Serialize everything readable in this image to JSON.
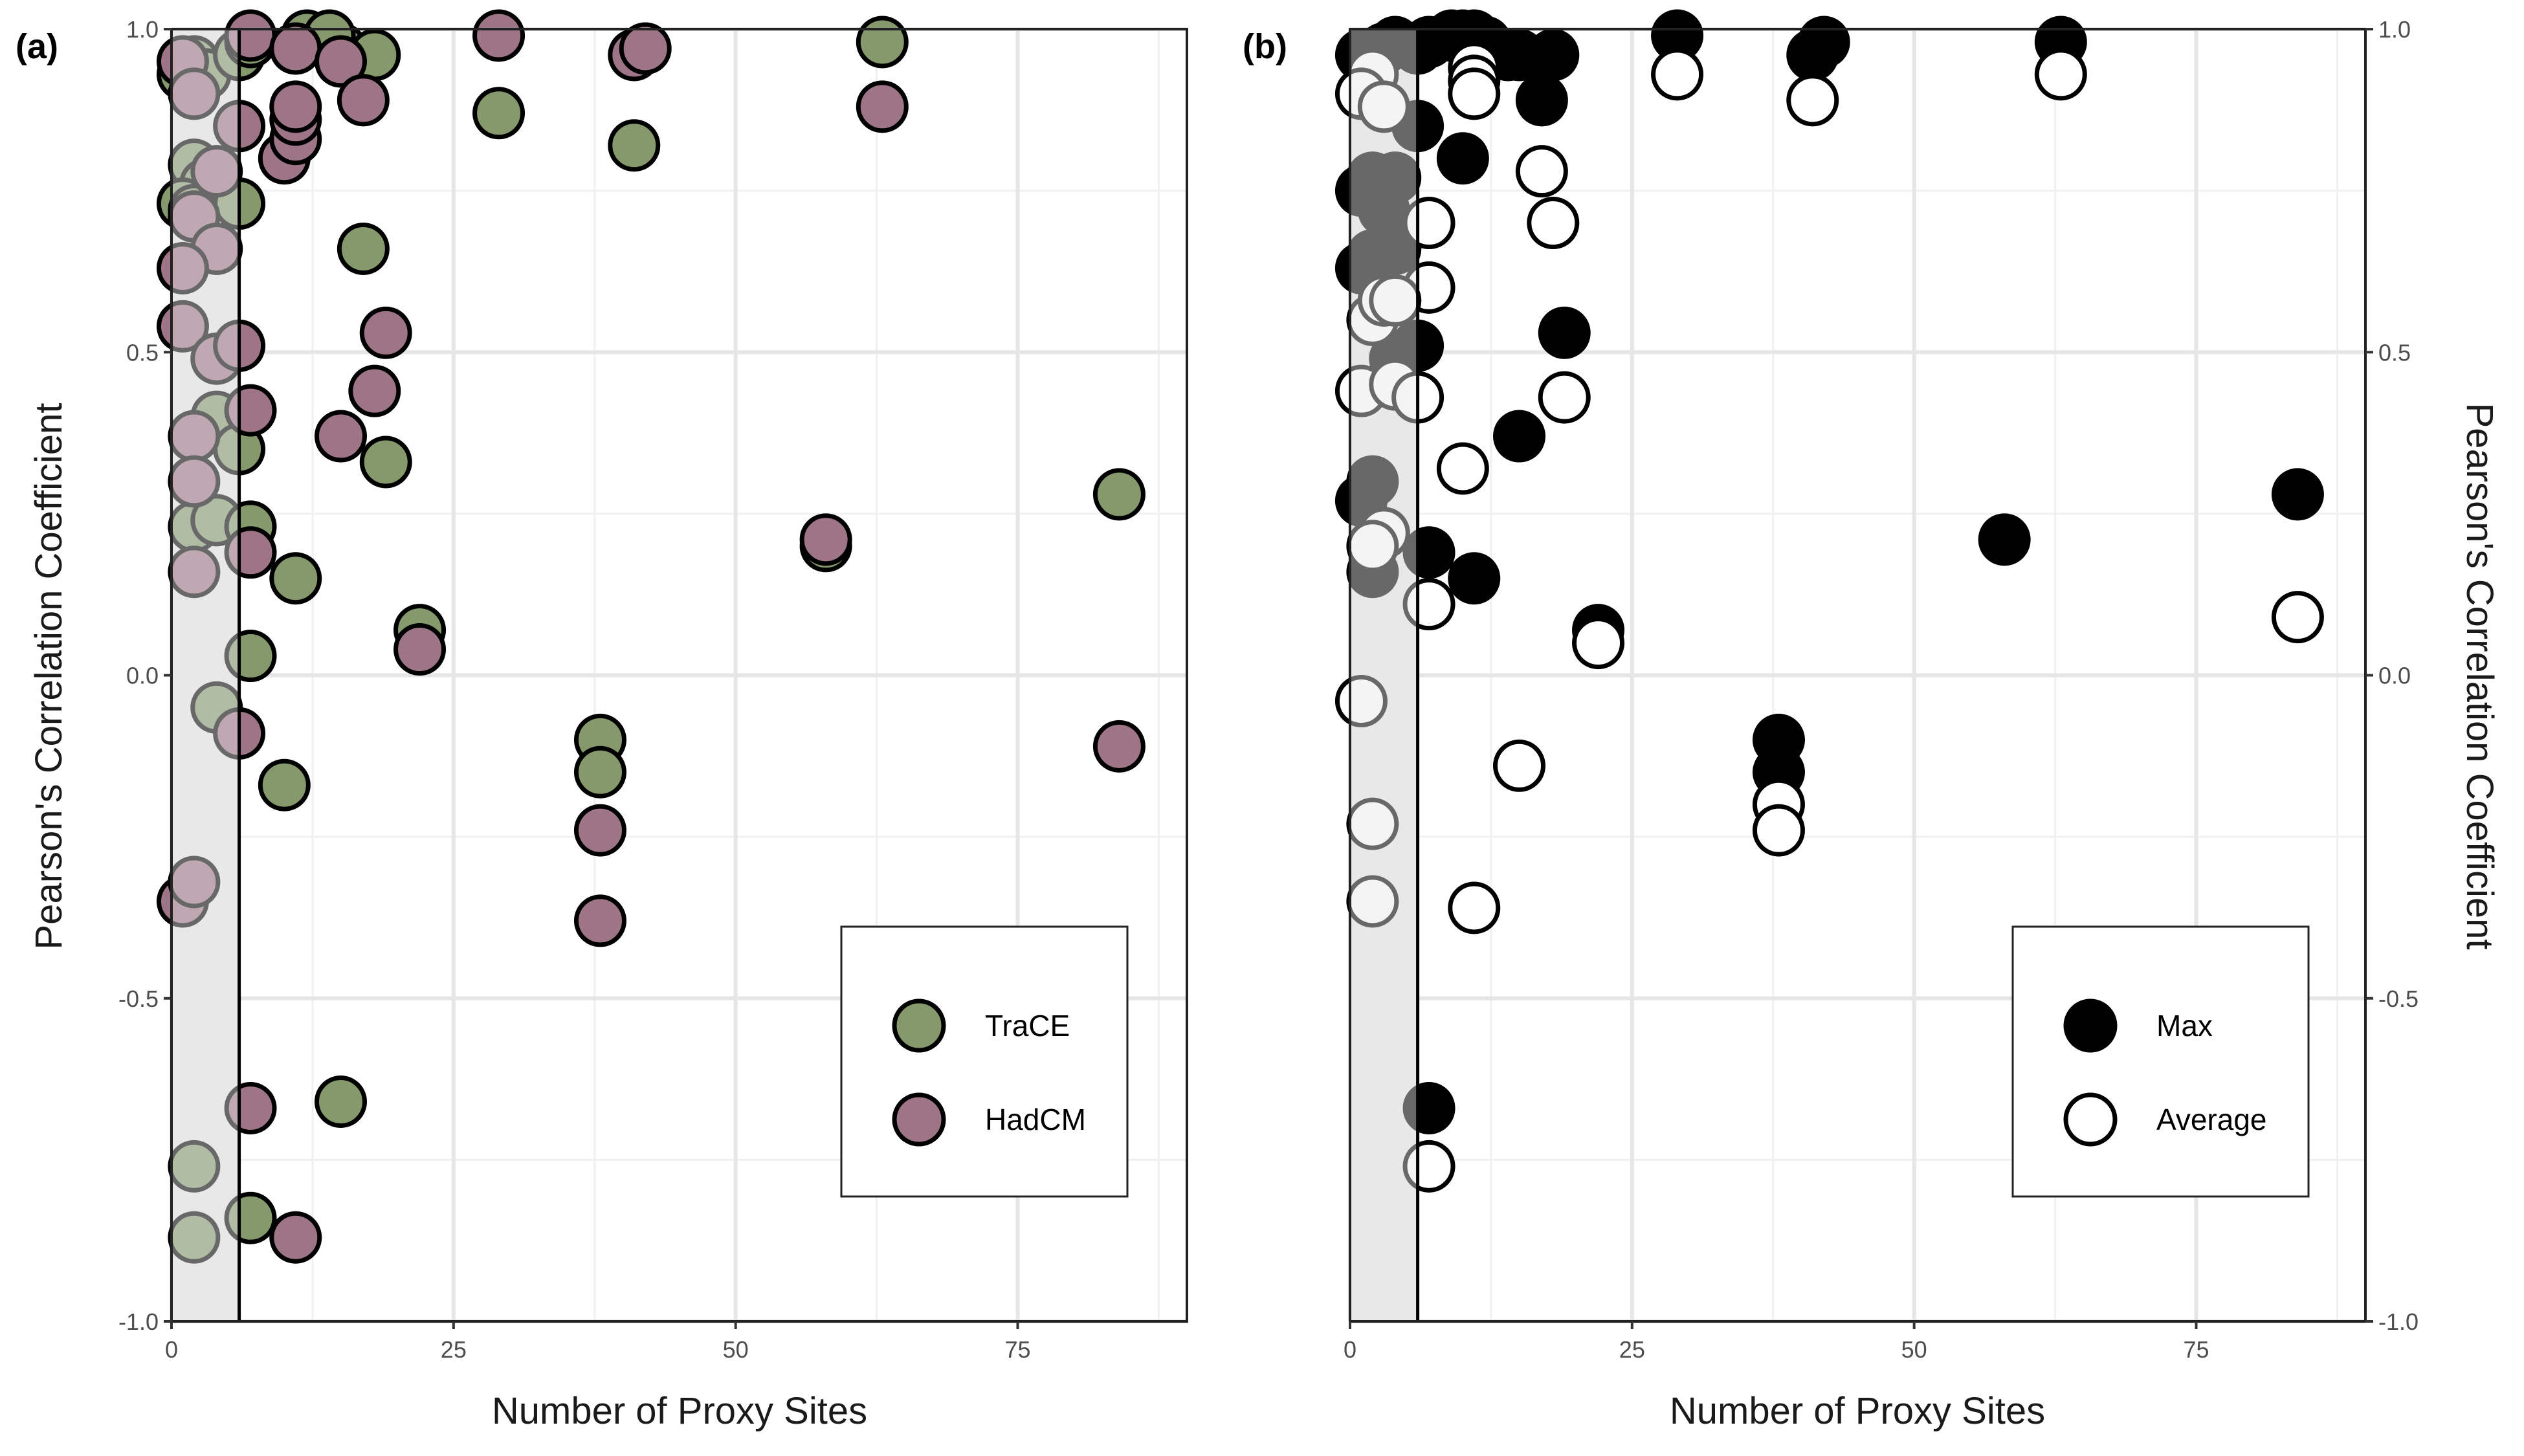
{
  "chart_data": [
    {
      "panel": "(a)",
      "type": "scatter",
      "xlabel": "Number of Proxy Sites",
      "ylabel": "Pearson's Correlation Coefficient",
      "xlim": [
        0,
        90
      ],
      "ylim": [
        -1.0,
        1.0
      ],
      "xticks": [
        0,
        25,
        50,
        75
      ],
      "yticks": [
        -1.0,
        -0.5,
        0.0,
        0.5,
        1.0
      ],
      "ytick_labels": [
        "-1.0",
        "-0.5",
        "0.0",
        "0.5",
        "1.0"
      ],
      "yaxis_side": "left",
      "grid": true,
      "shaded_x_range": [
        0,
        6
      ],
      "vline_x": 6,
      "legend_position": "bottom-right",
      "series": [
        {
          "name": "TraCE",
          "color": "#86996d",
          "points": [
            [
              1,
              0.93
            ],
            [
              2,
              0.95
            ],
            [
              3,
              0.93
            ],
            [
              6,
              0.96
            ],
            [
              7,
              0.98
            ],
            [
              2,
              0.79
            ],
            [
              3,
              0.76
            ],
            [
              1,
              0.73
            ],
            [
              2,
              0.72
            ],
            [
              6,
              0.73
            ],
            [
              4,
              0.4
            ],
            [
              6,
              0.35
            ],
            [
              2,
              0.23
            ],
            [
              4,
              0.24
            ],
            [
              7,
              0.23
            ],
            [
              7,
              0.03
            ],
            [
              4,
              -0.05
            ],
            [
              10,
              -0.17
            ],
            [
              11,
              0.15
            ],
            [
              15,
              0.97
            ],
            [
              17,
              0.66
            ],
            [
              18,
              0.96
            ],
            [
              19,
              0.33
            ],
            [
              22,
              0.07
            ],
            [
              29,
              0.87
            ],
            [
              38,
              -0.1
            ],
            [
              38,
              -0.15
            ],
            [
              41,
              0.82
            ],
            [
              58,
              0.2
            ],
            [
              63,
              0.98
            ],
            [
              84,
              0.28
            ],
            [
              15,
              -0.66
            ],
            [
              2,
              -0.76
            ],
            [
              2,
              -0.87
            ],
            [
              7,
              -0.84
            ],
            [
              12,
              0.99
            ],
            [
              14,
              0.99
            ]
          ]
        },
        {
          "name": "HadCM",
          "color": "#9e7587",
          "points": [
            [
              1,
              0.95
            ],
            [
              2,
              0.9
            ],
            [
              6,
              0.85
            ],
            [
              7,
              0.99
            ],
            [
              11,
              0.97
            ],
            [
              10,
              0.8
            ],
            [
              11,
              0.83
            ],
            [
              11,
              0.86
            ],
            [
              11,
              0.88
            ],
            [
              4,
              0.78
            ],
            [
              2,
              0.71
            ],
            [
              4,
              0.66
            ],
            [
              1,
              0.63
            ],
            [
              1,
              0.54
            ],
            [
              4,
              0.49
            ],
            [
              6,
              0.51
            ],
            [
              7,
              0.41
            ],
            [
              2,
              0.37
            ],
            [
              2,
              0.3
            ],
            [
              2,
              0.16
            ],
            [
              7,
              0.19
            ],
            [
              6,
              -0.09
            ],
            [
              15,
              0.95
            ],
            [
              17,
              0.89
            ],
            [
              18,
              0.44
            ],
            [
              19,
              0.53
            ],
            [
              15,
              0.37
            ],
            [
              22,
              0.04
            ],
            [
              29,
              0.99
            ],
            [
              38,
              -0.24
            ],
            [
              38,
              -0.38
            ],
            [
              41,
              0.96
            ],
            [
              42,
              0.97
            ],
            [
              58,
              0.21
            ],
            [
              63,
              0.88
            ],
            [
              84,
              -0.11
            ],
            [
              1,
              -0.35
            ],
            [
              2,
              -0.32
            ],
            [
              7,
              -0.67
            ],
            [
              11,
              -0.87
            ]
          ]
        }
      ]
    },
    {
      "panel": "(b)",
      "type": "scatter",
      "xlabel": "Number of Proxy Sites",
      "ylabel": "Pearson's Correlation Coefficient",
      "xlim": [
        0,
        90
      ],
      "ylim": [
        -1.0,
        1.0
      ],
      "xticks": [
        0,
        25,
        50,
        75
      ],
      "yticks": [
        -1.0,
        -0.5,
        0.0,
        0.5,
        1.0
      ],
      "ytick_labels": [
        "-1.0",
        "-0.5",
        "0.0",
        "0.5",
        "1.0"
      ],
      "yaxis_side": "right",
      "grid": true,
      "shaded_x_range": [
        0,
        6
      ],
      "vline_x": 6,
      "legend_position": "bottom-right",
      "series": [
        {
          "name": "Max",
          "color": "#000000",
          "points": [
            [
              1,
              0.96
            ],
            [
              2,
              0.96
            ],
            [
              3,
              0.97
            ],
            [
              4,
              0.98
            ],
            [
              6,
              0.97
            ],
            [
              7,
              0.98
            ],
            [
              9,
              0.99
            ],
            [
              10,
              0.99
            ],
            [
              11,
              0.99
            ],
            [
              12,
              0.98
            ],
            [
              14,
              0.96
            ],
            [
              15,
              0.96
            ],
            [
              18,
              0.96
            ],
            [
              29,
              0.99
            ],
            [
              41,
              0.96
            ],
            [
              42,
              0.98
            ],
            [
              63,
              0.98
            ],
            [
              6,
              0.85
            ],
            [
              10,
              0.8
            ],
            [
              17,
              0.89
            ],
            [
              1,
              0.75
            ],
            [
              2,
              0.77
            ],
            [
              3,
              0.72
            ],
            [
              4,
              0.77
            ],
            [
              1,
              0.63
            ],
            [
              2,
              0.65
            ],
            [
              4,
              0.66
            ],
            [
              4,
              0.49
            ],
            [
              6,
              0.51
            ],
            [
              19,
              0.53
            ],
            [
              15,
              0.37
            ],
            [
              2,
              0.3
            ],
            [
              1,
              0.27
            ],
            [
              2,
              0.16
            ],
            [
              7,
              0.19
            ],
            [
              11,
              0.15
            ],
            [
              22,
              0.07
            ],
            [
              38,
              -0.1
            ],
            [
              38,
              -0.15
            ],
            [
              58,
              0.21
            ],
            [
              84,
              0.28
            ],
            [
              7,
              -0.67
            ]
          ]
        },
        {
          "name": "Average",
          "color": "#ffffff",
          "points": [
            [
              2,
              0.93
            ],
            [
              1,
              0.9
            ],
            [
              3,
              0.88
            ],
            [
              11,
              0.94
            ],
            [
              11,
              0.92
            ],
            [
              11,
              0.9
            ],
            [
              29,
              0.93
            ],
            [
              41,
              0.89
            ],
            [
              63,
              0.93
            ],
            [
              17,
              0.78
            ],
            [
              18,
              0.7
            ],
            [
              7,
              0.7
            ],
            [
              7,
              0.6
            ],
            [
              2,
              0.55
            ],
            [
              3,
              0.58
            ],
            [
              4,
              0.58
            ],
            [
              1,
              0.44
            ],
            [
              4,
              0.45
            ],
            [
              6,
              0.43
            ],
            [
              19,
              0.43
            ],
            [
              10,
              0.32
            ],
            [
              3,
              0.22
            ],
            [
              2,
              0.2
            ],
            [
              7,
              0.11
            ],
            [
              22,
              0.05
            ],
            [
              84,
              0.09
            ],
            [
              1,
              -0.04
            ],
            [
              15,
              -0.14
            ],
            [
              38,
              -0.2
            ],
            [
              38,
              -0.24
            ],
            [
              2,
              -0.23
            ],
            [
              2,
              -0.35
            ],
            [
              11,
              -0.36
            ],
            [
              7,
              -0.76
            ]
          ]
        }
      ]
    }
  ]
}
